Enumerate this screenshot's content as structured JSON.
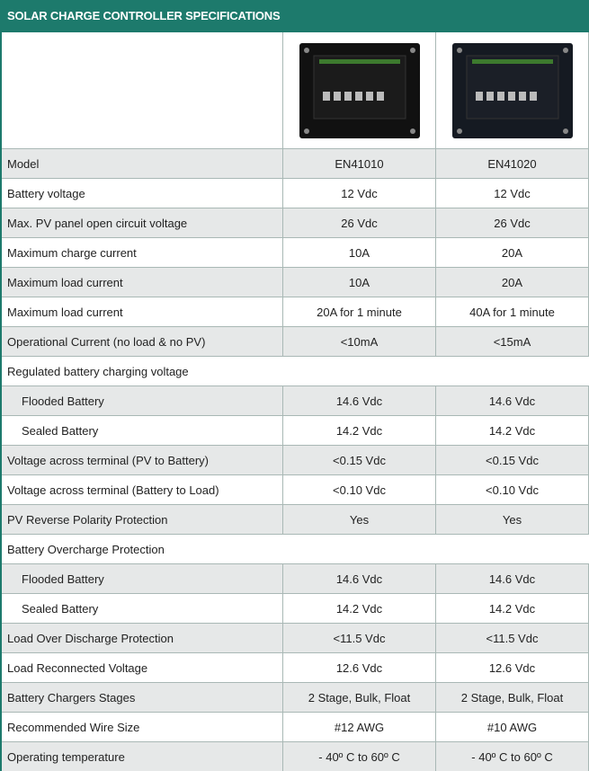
{
  "header": {
    "title": "SOLAR CHARGE CONTROLLER SPECIFICATIONS"
  },
  "table": {
    "rows": [
      [
        "Model",
        "EN41010",
        "EN41020"
      ],
      [
        "Battery voltage",
        "12 Vdc",
        "12 Vdc"
      ],
      [
        "Max. PV panel open circuit voltage",
        "26 Vdc",
        "26 Vdc"
      ],
      [
        "Maximum charge current",
        "10A",
        "20A"
      ],
      [
        "Maximum load current",
        "10A",
        "20A"
      ],
      [
        "Maximum load current",
        "20A for 1 minute",
        "40A for 1 minute"
      ],
      [
        "Operational Current (no load & no PV)",
        "<10mA",
        "<15mA"
      ],
      {
        "label": "Regulated battery charging voltage",
        "rows": [
          [
            "Flooded Battery",
            "14.6 Vdc",
            "14.6 Vdc"
          ],
          [
            "Sealed Battery",
            "14.2 Vdc",
            "14.2 Vdc"
          ]
        ]
      },
      [
        "Voltage across terminal (PV to Battery)",
        "<0.15 Vdc",
        "<0.15 Vdc"
      ],
      [
        "Voltage across terminal (Battery to Load)",
        "<0.10 Vdc",
        "<0.10 Vdc"
      ],
      [
        "PV Reverse Polarity Protection",
        "Yes",
        "Yes"
      ],
      {
        "label": "Battery Overcharge Protection",
        "rows": [
          [
            "Flooded Battery",
            "14.6 Vdc",
            "14.6 Vdc"
          ],
          [
            "Sealed Battery",
            "14.2 Vdc",
            "14.2 Vdc"
          ]
        ]
      },
      [
        "Load Over Discharge Protection",
        "<11.5 Vdc",
        "<11.5 Vdc"
      ],
      [
        "Load Reconnected Voltage",
        "12.6 Vdc",
        "12.6 Vdc"
      ],
      [
        "Battery Chargers Stages",
        "2 Stage, Bulk, Float",
        "2 Stage, Bulk, Float"
      ],
      [
        "Recommended Wire Size",
        "#12 AWG",
        "#10 AWG"
      ],
      [
        "Operating temperature",
        "- 40º C to 60º C",
        "- 40º C to 60º C"
      ]
    ]
  }
}
